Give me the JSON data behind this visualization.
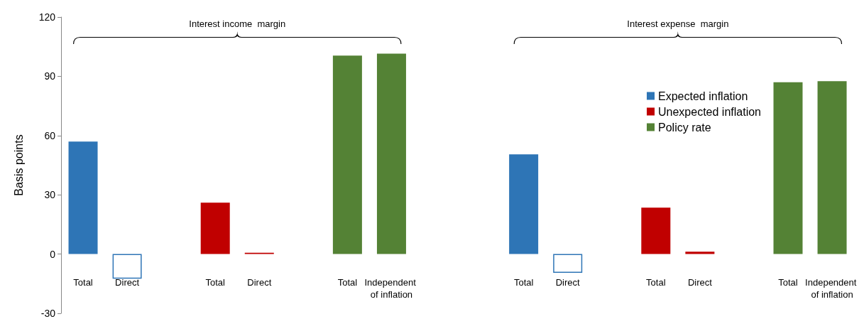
{
  "chart_data": {
    "type": "bar",
    "ylabel": "Basis points",
    "categories": [
      "Total",
      "Direct",
      null,
      "Total",
      "Direct",
      null,
      "Total",
      "Independent of inflation",
      null,
      null,
      "Total",
      "Direct",
      null,
      "Total",
      "Direct",
      null,
      "Total",
      "Independent of inflation"
    ],
    "series": [
      {
        "name": "Expected inflation",
        "color": "#2e75b6",
        "colors": [
          "#2e75b6",
          "#ffffff",
          null,
          null,
          null,
          null,
          null,
          null,
          null,
          null,
          "#2e75b6",
          "#ffffff",
          null,
          null,
          null,
          null,
          null,
          null
        ],
        "values": [
          57,
          -12.5,
          null,
          null,
          null,
          null,
          null,
          null,
          null,
          null,
          50.5,
          -9.5,
          null,
          null,
          null,
          null,
          null,
          null
        ]
      },
      {
        "name": "Unexpected inflation",
        "color": "#c00000",
        "values": [
          null,
          null,
          null,
          26,
          0.7,
          null,
          null,
          null,
          null,
          null,
          null,
          null,
          null,
          23.5,
          1.2,
          null,
          null,
          null
        ]
      },
      {
        "name": "Policy rate",
        "color": "#548235",
        "values": [
          null,
          null,
          null,
          null,
          null,
          null,
          100.5,
          101.5,
          null,
          null,
          null,
          null,
          null,
          null,
          null,
          null,
          87,
          87.5
        ]
      }
    ],
    "annotations": [
      "Interest income  margin",
      "Interest expense  margin"
    ],
    "ylim": [
      -30,
      120
    ],
    "yticks": [
      -30,
      0,
      30,
      60,
      90,
      120
    ],
    "grid": false,
    "legend": "top right"
  }
}
